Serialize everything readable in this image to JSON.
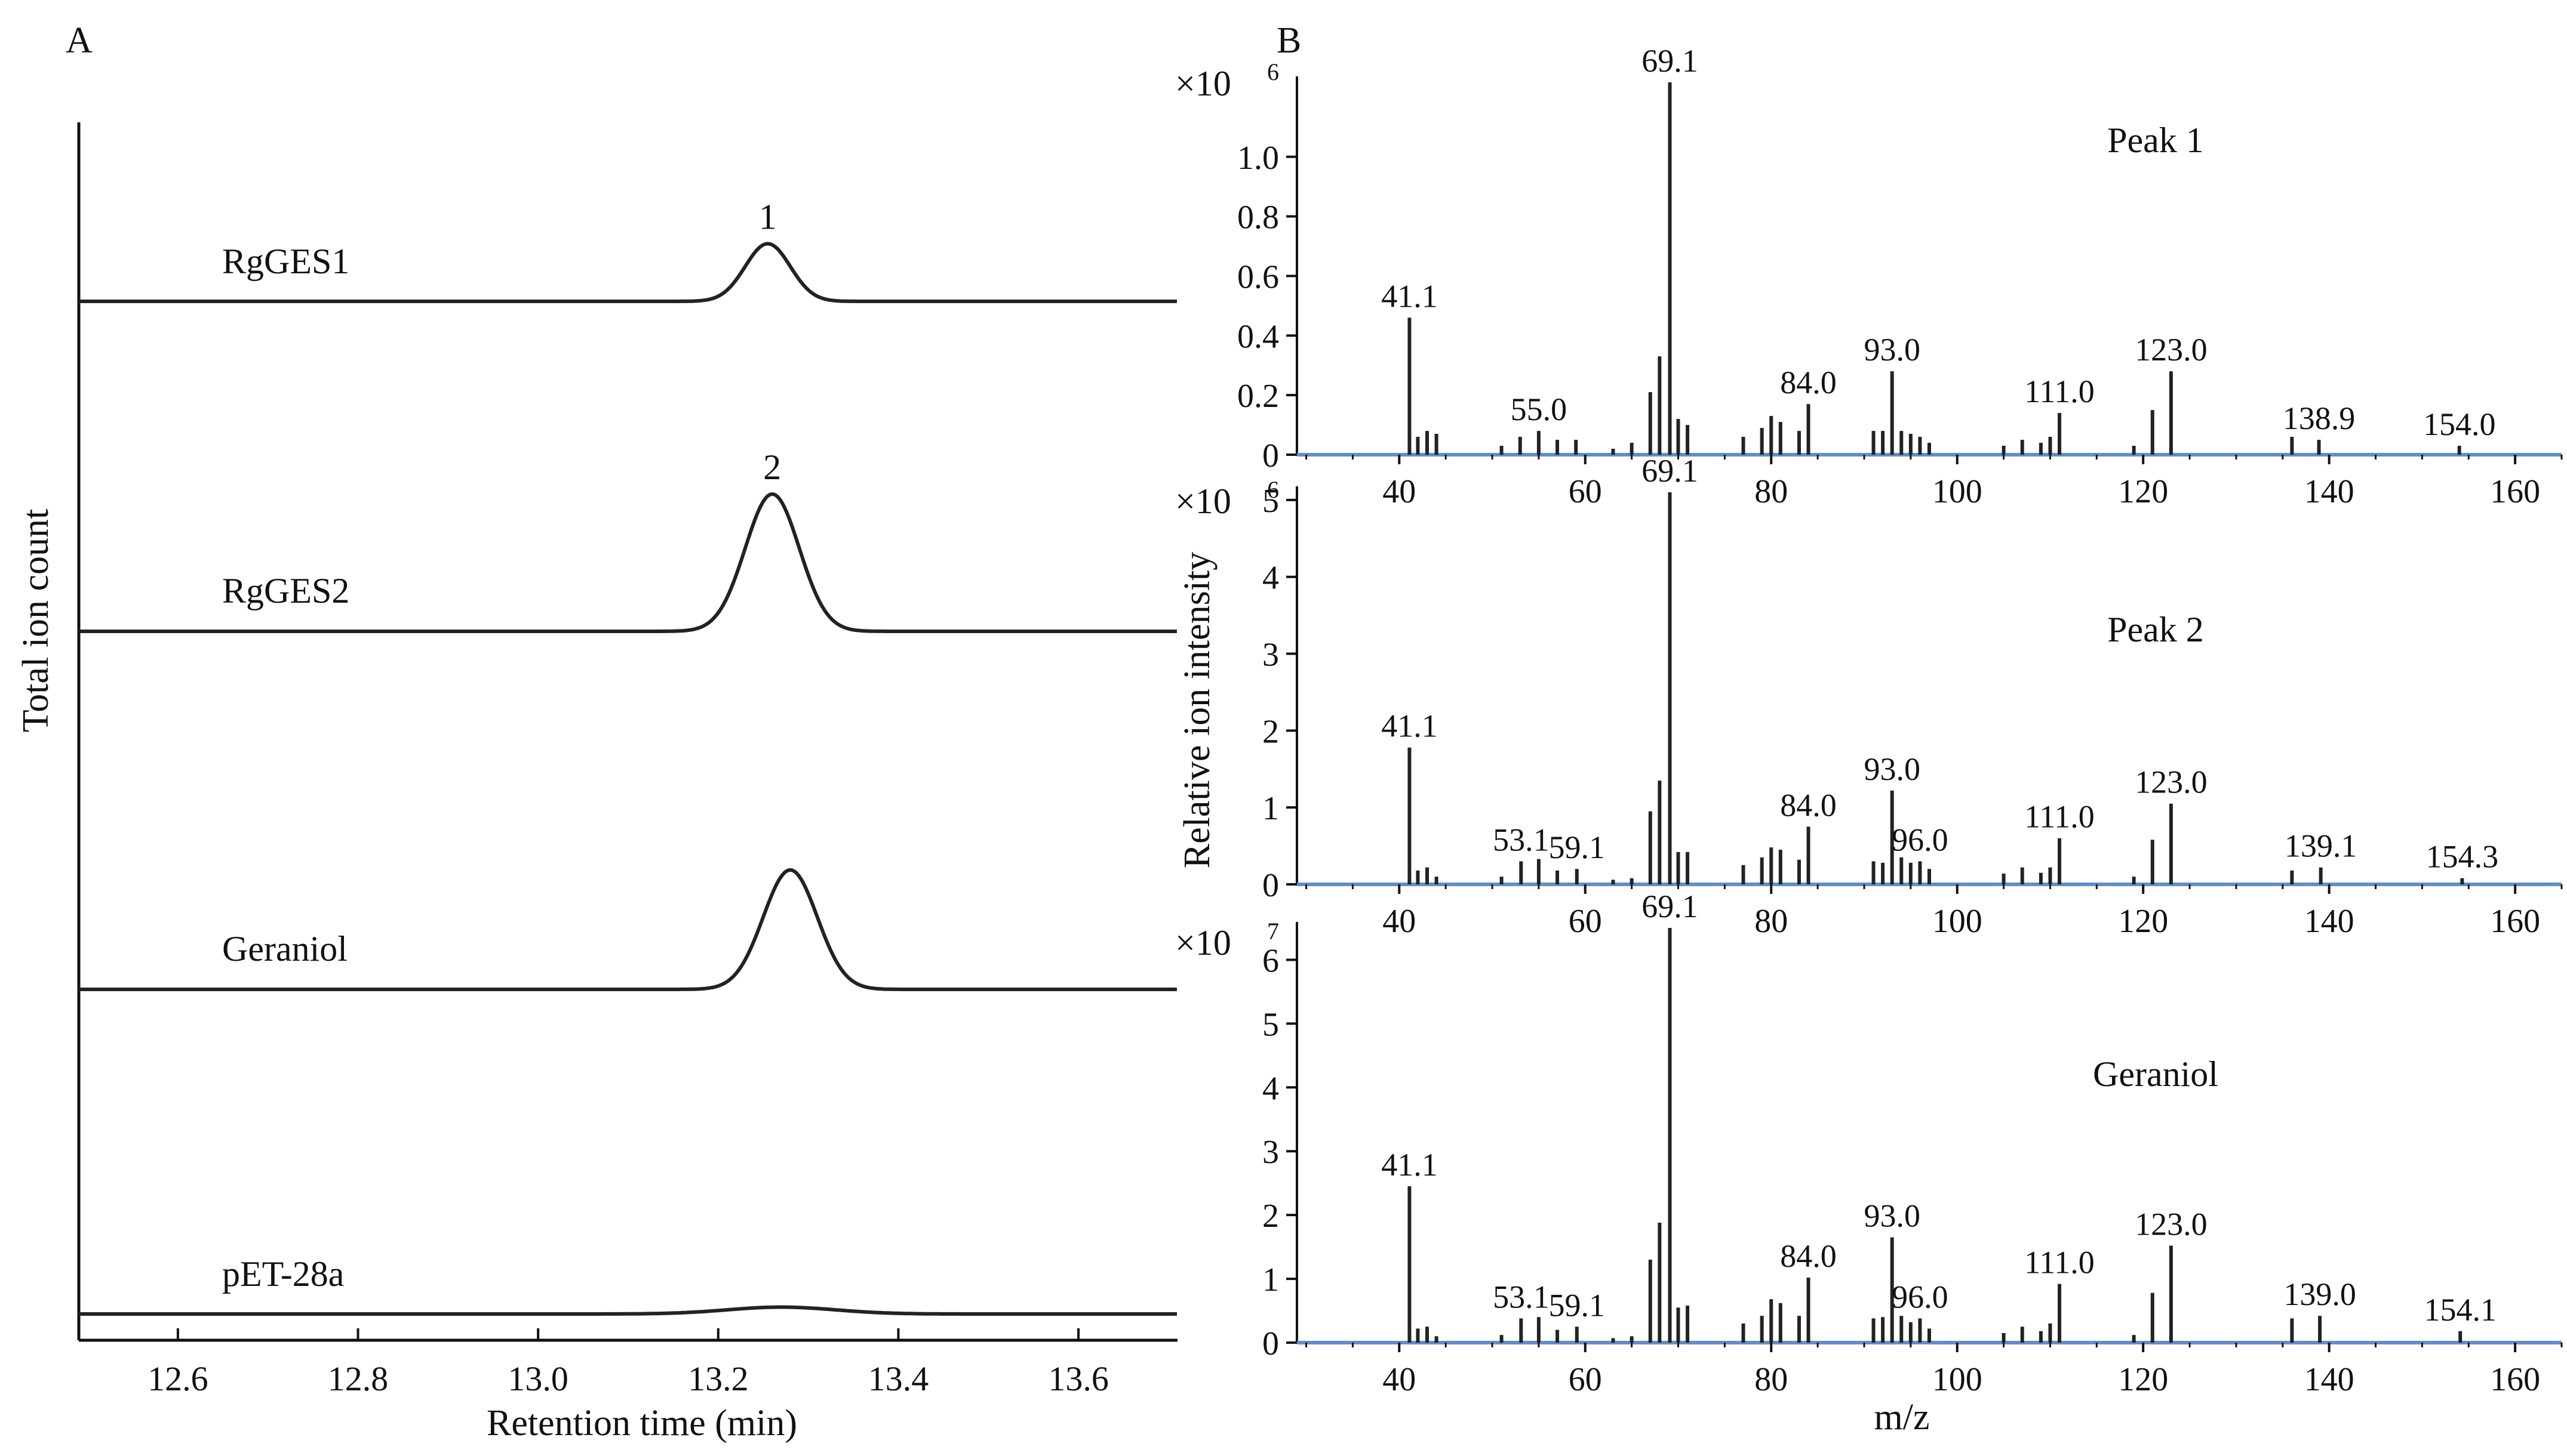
{
  "figure": {
    "panel_a_label": "A",
    "panel_b_label": "B"
  },
  "colors": {
    "trace": "#222222",
    "baseline": "#5b8fd0"
  },
  "chart_data": [
    {
      "type": "line",
      "panel": "A",
      "xlabel": "Retention time (min)",
      "ylabel": "Total ion count",
      "xlim": [
        12.49,
        13.71
      ],
      "xticks": [
        "12.6",
        "12.8",
        "13.0",
        "13.2",
        "13.4",
        "13.6"
      ],
      "series": [
        {
          "name": "RgGES1",
          "peak_label": "1",
          "peak_rt": 13.255,
          "relative_height": 0.42,
          "width": 0.025
        },
        {
          "name": "RgGES2",
          "peak_label": "2",
          "peak_rt": 13.26,
          "relative_height": 1.0,
          "width": 0.03
        },
        {
          "name": "Geraniol",
          "peak_label": "",
          "peak_rt": 13.28,
          "relative_height": 0.87,
          "width": 0.03
        },
        {
          "name": "pET-28a",
          "peak_label": "",
          "peak_rt": 13.27,
          "relative_height": 0.05,
          "width": 0.06
        }
      ]
    },
    {
      "type": "bar",
      "panel": "B",
      "title": "Peak 1",
      "scale_label": "×10",
      "scale_exp": "6",
      "xlabel": "",
      "xlim": [
        29,
        165
      ],
      "xticks": [
        "40",
        "60",
        "80",
        "100",
        "120",
        "140",
        "160"
      ],
      "ylim": [
        0,
        1.25
      ],
      "yticks": [
        "0",
        "0.2",
        "0.4",
        "0.6",
        "0.8",
        "1.0"
      ],
      "labels": [
        "41.1",
        "55.0",
        "69.1",
        "84.0",
        "93.0",
        "111.0",
        "123.0",
        "138.9",
        "154.0"
      ],
      "mz": [
        41.1,
        42,
        43,
        44,
        51,
        53,
        55.0,
        57,
        59,
        63,
        65,
        67,
        68,
        69.1,
        70,
        71,
        77,
        79,
        80,
        81,
        83,
        84.0,
        91,
        92,
        93.0,
        94,
        95,
        96,
        97,
        105,
        107,
        109,
        110,
        111.0,
        119,
        121,
        123.0,
        136,
        138.9,
        154.0
      ],
      "intensity": [
        0.46,
        0.06,
        0.08,
        0.07,
        0.03,
        0.06,
        0.08,
        0.05,
        0.05,
        0.02,
        0.04,
        0.21,
        0.33,
        1.25,
        0.12,
        0.1,
        0.06,
        0.09,
        0.13,
        0.11,
        0.08,
        0.17,
        0.08,
        0.08,
        0.28,
        0.08,
        0.07,
        0.06,
        0.04,
        0.03,
        0.05,
        0.04,
        0.06,
        0.14,
        0.03,
        0.15,
        0.28,
        0.06,
        0.05,
        0.03
      ]
    },
    {
      "type": "bar",
      "panel": "B",
      "title": "Peak 2",
      "scale_label": "×10",
      "scale_exp": "6",
      "xlabel": "",
      "ylabel": "Relative ion intensity",
      "xlim": [
        29,
        165
      ],
      "xticks": [
        "40",
        "60",
        "80",
        "100",
        "120",
        "140",
        "160"
      ],
      "ylim": [
        0,
        5.1
      ],
      "yticks": [
        "0",
        "1",
        "2",
        "3",
        "4",
        "5"
      ],
      "labels": [
        "41.1",
        "53.1",
        "59.1",
        "69.1",
        "84.0",
        "93.0",
        "96.0",
        "111.0",
        "123.0",
        "139.1",
        "154.3"
      ],
      "mz": [
        41.1,
        42,
        43,
        44,
        51,
        53.1,
        55,
        57,
        59.1,
        63,
        65,
        67,
        68,
        69.1,
        70,
        71,
        77,
        79,
        80,
        81,
        83,
        84.0,
        91,
        92,
        93.0,
        94,
        95,
        96.0,
        97,
        105,
        107,
        109,
        110,
        111.0,
        119,
        121,
        123.0,
        136,
        139.1,
        154.3
      ],
      "intensity": [
        1.78,
        0.18,
        0.22,
        0.1,
        0.1,
        0.3,
        0.33,
        0.18,
        0.2,
        0.06,
        0.08,
        0.95,
        1.35,
        5.1,
        0.42,
        0.42,
        0.25,
        0.35,
        0.48,
        0.45,
        0.32,
        0.75,
        0.3,
        0.28,
        1.22,
        0.35,
        0.28,
        0.3,
        0.2,
        0.14,
        0.22,
        0.15,
        0.22,
        0.6,
        0.1,
        0.58,
        1.05,
        0.18,
        0.22,
        0.08
      ]
    },
    {
      "type": "bar",
      "panel": "B",
      "title": "Geraniol",
      "scale_label": "×10",
      "scale_exp": "7",
      "xlabel": "m/z",
      "xlim": [
        29,
        165
      ],
      "xticks": [
        "40",
        "60",
        "80",
        "100",
        "120",
        "140",
        "160"
      ],
      "ylim": [
        0,
        6.5
      ],
      "yticks": [
        "0",
        "1",
        "2",
        "3",
        "4",
        "5",
        "6"
      ],
      "labels": [
        "41.1",
        "53.1",
        "59.1",
        "69.1",
        "84.0",
        "93.0",
        "96.0",
        "111.0",
        "123.0",
        "139.0",
        "154.1"
      ],
      "mz": [
        41.1,
        42,
        43,
        44,
        51,
        53.1,
        55,
        57,
        59.1,
        63,
        65,
        67,
        68,
        69.1,
        70,
        71,
        77,
        79,
        80,
        81,
        83,
        84.0,
        91,
        92,
        93.0,
        94,
        95,
        96.0,
        97,
        105,
        107,
        109,
        110,
        111.0,
        119,
        121,
        123.0,
        136,
        139.0,
        154.1
      ],
      "intensity": [
        2.45,
        0.22,
        0.25,
        0.1,
        0.12,
        0.38,
        0.4,
        0.2,
        0.25,
        0.07,
        0.1,
        1.3,
        1.88,
        6.5,
        0.55,
        0.58,
        0.3,
        0.42,
        0.68,
        0.62,
        0.42,
        1.02,
        0.38,
        0.4,
        1.65,
        0.42,
        0.32,
        0.38,
        0.22,
        0.15,
        0.25,
        0.18,
        0.3,
        0.92,
        0.12,
        0.78,
        1.52,
        0.38,
        0.42,
        0.18
      ]
    }
  ]
}
